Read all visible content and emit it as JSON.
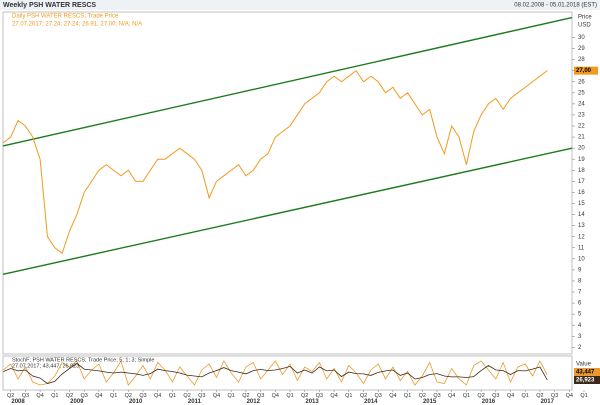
{
  "header": {
    "title": "Weekly PSH WATER RESCS",
    "range": "08.02.2008 - 05.01.2018 (EST)"
  },
  "chart_data": [
    {
      "type": "line",
      "categories": [
        null,
        null,
        "Q2",
        null,
        "Q3",
        null,
        "Q4",
        null,
        "Q1",
        null,
        "Q2",
        null,
        "Q3",
        null,
        "Q4",
        null,
        "Q1",
        null,
        "Q2",
        null,
        "Q3",
        null,
        "Q4",
        null,
        "Q1",
        null,
        "Q2",
        null,
        "Q3",
        null,
        "Q4",
        null,
        "Q1",
        null,
        "Q2",
        null,
        "Q3",
        null,
        "Q4",
        null,
        "Q1",
        null,
        "Q2",
        null,
        "Q3",
        null,
        "Q4",
        null,
        "Q1",
        null,
        "Q2",
        null,
        "Q3",
        null,
        "Q4",
        null,
        "Q1",
        null,
        "Q2",
        null,
        "Q3",
        null,
        "Q4",
        null,
        "Q1",
        null,
        "Q2",
        null,
        "Q3",
        null,
        "Q4",
        null,
        "Q1",
        null,
        "Q2",
        null,
        "Q3",
        null,
        "Q4",
        null,
        "Q1"
      ],
      "years": [
        "2008",
        "2009",
        "2010",
        "2011",
        "2012",
        "2013",
        "2014",
        "2015",
        "2016",
        "2017"
      ],
      "series": [
        {
          "name": "Daily PSH WATER RESCS; Trade Price",
          "color": "#f29a1e",
          "values": [
            null,
            20.5,
            21,
            22.5,
            22,
            21,
            19,
            12,
            11,
            10.5,
            12.5,
            14,
            16,
            17,
            18,
            18.5,
            18,
            17.5,
            18,
            17,
            17,
            18,
            19,
            19,
            19.5,
            20,
            19.5,
            19,
            18,
            15.5,
            17,
            17.5,
            18,
            18.5,
            17.5,
            18,
            19,
            19.5,
            21,
            21.5,
            22,
            23,
            24,
            24.5,
            25,
            26,
            26.5,
            26,
            26.5,
            27,
            26,
            26.5,
            26,
            25,
            25.5,
            24.5,
            25,
            24,
            23,
            23.5,
            21,
            19.5,
            22,
            21,
            18.5,
            21.5,
            23,
            24,
            24.5,
            23.5,
            24.5,
            25,
            25.5,
            26,
            26.5,
            27,
            null,
            null,
            null,
            null,
            null
          ]
        }
      ],
      "info": "27.07.2017; 27.24; 27.24; 26.91; 27.00; N/A; N/A",
      "channels": [
        {
          "color": "#1e7a1e",
          "values": [
            20.2,
            31.8
          ]
        },
        {
          "color": "#1e7a1e",
          "values": [
            8.6,
            20.0
          ]
        }
      ],
      "current": {
        "value": 27,
        "label": "27,00"
      },
      "y_label": "Price",
      "y_unit": "USD",
      "ylim": [
        1.4,
        32.3
      ],
      "yticks": [
        2,
        3,
        4,
        5,
        6,
        7,
        8,
        9,
        10,
        11,
        12,
        13,
        14,
        15,
        16,
        17,
        18,
        19,
        20,
        21,
        22,
        23,
        24,
        25,
        26,
        27,
        28,
        29,
        30
      ]
    },
    {
      "type": "line",
      "title": "StochF; PSH WATER RESCS; Trade Price; 5; 1; 3; Simple",
      "info": "27.07.2017; 43,447; 26,923",
      "y_label": "Value",
      "ylim": [
        0,
        100
      ],
      "series": [
        {
          "color": "#e89a2c",
          "current": {
            "value": 43.447,
            "label": "43,447"
          },
          "values": [
            null,
            60,
            80,
            30,
            70,
            20,
            10,
            15,
            40,
            85,
            70,
            90,
            30,
            60,
            80,
            20,
            50,
            90,
            10,
            40,
            75,
            30,
            85,
            60,
            20,
            70,
            40,
            10,
            60,
            80,
            35,
            90,
            50,
            20,
            70,
            85,
            30,
            60,
            90,
            45,
            80,
            25,
            70,
            55,
            85,
            30,
            65,
            20,
            75,
            50,
            15,
            60,
            80,
            30,
            70,
            25,
            55,
            10,
            40,
            85,
            20,
            15,
            65,
            30,
            10,
            75,
            90,
            60,
            30,
            85,
            20,
            70,
            80,
            40,
            90,
            43.447,
            null,
            null,
            null,
            null,
            null
          ]
        },
        {
          "color": "#3b2a1c",
          "current": {
            "value": 26.923,
            "label": "26,923"
          },
          "values": [
            null,
            55,
            65,
            57,
            60,
            40,
            33,
            15,
            22,
            47,
            65,
            82,
            63,
            60,
            57,
            53,
            50,
            53,
            50,
            47,
            42,
            48,
            63,
            58,
            55,
            50,
            43,
            40,
            37,
            50,
            58,
            68,
            58,
            53,
            47,
            58,
            62,
            58,
            60,
            65,
            72,
            50,
            60,
            50,
            70,
            57,
            60,
            38,
            53,
            48,
            47,
            42,
            52,
            57,
            60,
            42,
            50,
            30,
            35,
            45,
            48,
            40,
            37,
            37,
            35,
            38,
            58,
            75,
            60,
            58,
            45,
            58,
            57,
            63,
            70,
            26.923,
            null,
            null,
            null,
            null,
            null
          ]
        }
      ]
    }
  ]
}
